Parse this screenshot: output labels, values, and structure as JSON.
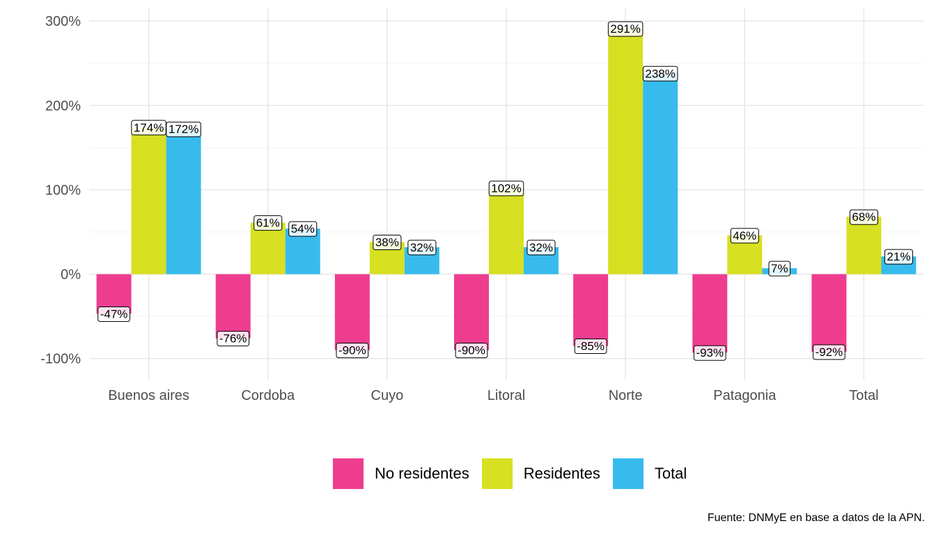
{
  "chart_data": {
    "type": "bar",
    "title": "",
    "xlabel": "",
    "ylabel": "",
    "categories": [
      "Buenos aires",
      "Cordoba",
      "Cuyo",
      "Litoral",
      "Norte",
      "Patagonia",
      "Total"
    ],
    "series": [
      {
        "name": "No residentes",
        "color": "#EE3D8F",
        "values": [
          -47,
          -76,
          -90,
          -90,
          -85,
          -93,
          -92
        ]
      },
      {
        "name": "Residentes",
        "color": "#D7E021",
        "values": [
          174,
          61,
          38,
          102,
          291,
          46,
          68
        ]
      },
      {
        "name": "Total",
        "color": "#37BBED",
        "values": [
          172,
          54,
          32,
          32,
          238,
          7,
          21
        ]
      }
    ],
    "data_labels": [
      [
        "-47%",
        "-76%",
        "-90%",
        "-90%",
        "-85%",
        "-93%",
        "-92%"
      ],
      [
        "174%",
        "61%",
        "38%",
        "102%",
        "291%",
        "46%",
        "68%"
      ],
      [
        "172%",
        "54%",
        "32%",
        "32%",
        "238%",
        "7%",
        "21%"
      ]
    ],
    "ylim": [
      -125,
      315
    ],
    "yticks": [
      -100,
      0,
      100,
      200,
      300
    ],
    "ytick_labels": [
      "-100%",
      "0%",
      "100%",
      "200%",
      "300%"
    ],
    "grid": true,
    "legend_position": "bottom"
  },
  "caption": "Fuente: DNMyE en base a datos de la APN."
}
